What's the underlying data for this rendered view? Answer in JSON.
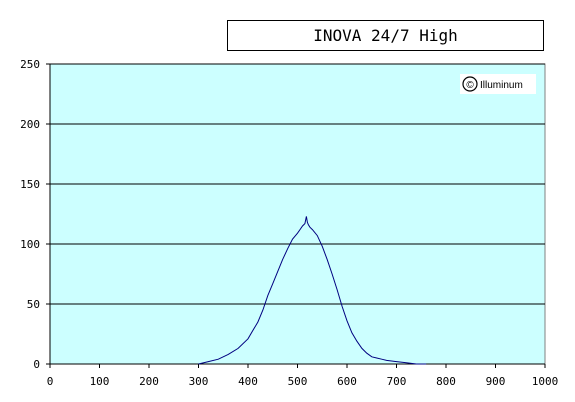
{
  "chart_data": {
    "type": "line",
    "title": "INOVA 24/7 High",
    "xlabel": "",
    "ylabel": "",
    "xlim": [
      0,
      1000
    ],
    "ylim": [
      0,
      250
    ],
    "x_ticks": [
      0,
      100,
      200,
      300,
      400,
      500,
      600,
      700,
      800,
      900,
      1000
    ],
    "y_ticks": [
      0,
      50,
      100,
      150,
      200,
      250
    ],
    "grid": {
      "horizontal": true,
      "vertical": false
    },
    "plot_background": "#ccffff",
    "series_color": "#000080",
    "badge_text": "Illuminum",
    "badge_symbol": "©",
    "series": [
      {
        "x": [
          300,
          320,
          340,
          360,
          380,
          400,
          410,
          420,
          430,
          440,
          450,
          460,
          470,
          480,
          490,
          500,
          505,
          510,
          515,
          518,
          520,
          522,
          525,
          530,
          540,
          550,
          560,
          570,
          580,
          590,
          600,
          610,
          620,
          630,
          640,
          650,
          660,
          670,
          680,
          700,
          720,
          740,
          760
        ],
        "y": [
          0,
          2,
          4,
          8,
          13,
          21,
          28,
          35,
          45,
          57,
          67,
          77,
          87,
          96,
          104,
          109,
          112,
          115,
          117,
          123,
          118,
          116,
          114,
          112,
          107,
          98,
          87,
          75,
          62,
          48,
          36,
          26,
          19,
          13,
          9,
          6,
          5,
          4,
          3,
          2,
          1,
          0,
          0
        ]
      }
    ]
  }
}
